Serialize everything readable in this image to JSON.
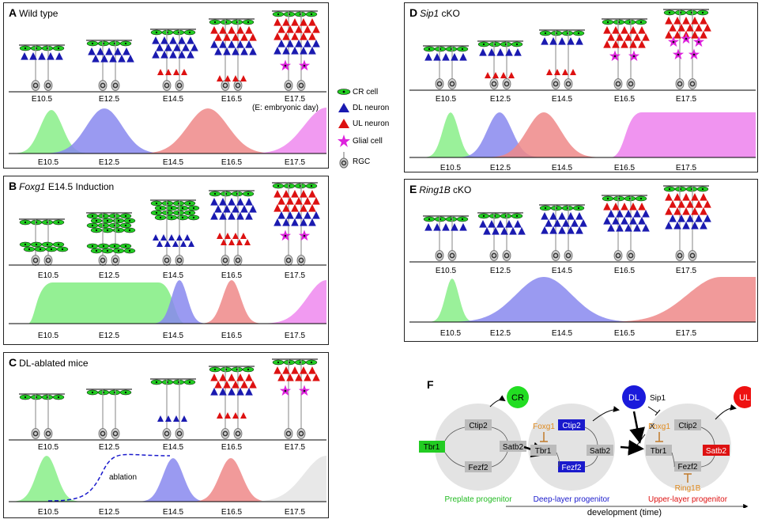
{
  "panels": {
    "A": {
      "letter": "A",
      "title_italic": "",
      "title": "Wild type"
    },
    "B": {
      "letter": "B",
      "title_italic": "Foxg1",
      "title": " E14.5 Induction"
    },
    "C": {
      "letter": "C",
      "title_italic": "",
      "title": "DL-ablated mice"
    },
    "D": {
      "letter": "D",
      "title_italic": "Sip1",
      "title": " cKO"
    },
    "E": {
      "letter": "E",
      "title_italic": "Ring1B",
      "title": " cKO"
    },
    "F": {
      "letter": "F"
    }
  },
  "days": [
    "E10.5",
    "E12.5",
    "E14.5",
    "E16.5",
    "E17.5"
  ],
  "embryonic_note": "(E: embryonic day)",
  "ablation_label": "ablation",
  "legend": {
    "cr": "CR cell",
    "dl": "DL neuron",
    "ul": "UL neuron",
    "glial": "Glial cell",
    "rgc": "RGC"
  },
  "colors": {
    "cr": "#22cc22",
    "dl": "#1a1ab0",
    "ul": "#dd1111",
    "glial": "#dd22dd",
    "green_fill": "#88ee88",
    "blue_fill": "#8888ee",
    "red_fill": "#ee8888",
    "magenta_fill": "#ee88ee",
    "grey_fill": "#e8e8e8"
  },
  "diagram_f": {
    "genes": {
      "ctip2": "Ctip2",
      "tbr1": "Tbr1",
      "satb2": "Satb2",
      "fezf2": "Fezf2",
      "foxg1": "Foxg1",
      "ring1b": "Ring1B",
      "sip1": "Sip1"
    },
    "fates": {
      "cr": "CR",
      "dl": "DL",
      "ul": "UL"
    },
    "progenitors": {
      "preplate": "Preplate progenitor",
      "deep": "Deep-layer progenitor",
      "upper": "Upper-layer progenitor"
    },
    "x_mark": "X",
    "timeline": "development  (time)"
  }
}
